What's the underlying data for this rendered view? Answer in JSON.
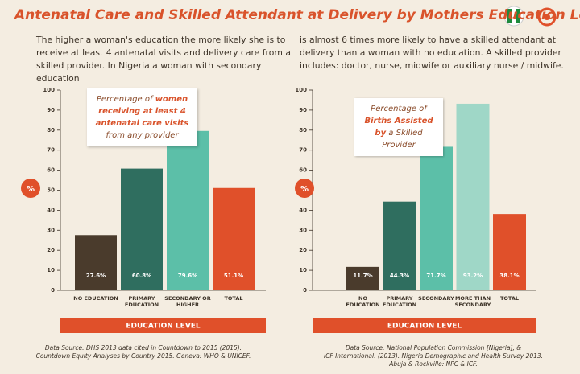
{
  "header": {
    "title": "Antenatal Care and Skilled Attendant at Delivery by Mothers Education Level",
    "intro": [
      "The higher a woman's education the more likely she is to receive at least 4 antenatal visits and delivery care from a skilled provider. In Nigeria a woman with secondary education",
      "is almost 6 times more likely to have a skilled attendant at delivery than a woman with no education. A skilled provider includes: doctor, nurse, midwife or auxiliary nurse / midwife."
    ]
  },
  "chart_data": [
    {
      "type": "bar",
      "annotation": [
        "Percentage of ",
        "women receiving at least 4 antenatal care visits",
        " from any provider"
      ],
      "y_label": "%",
      "x_label": "EDUCATION LEVEL",
      "categories": [
        "NO EDUCATION",
        "PRIMARY EDUCATION",
        "SECONDARY OR HIGHER",
        "TOTAL"
      ],
      "values": [
        27.6,
        60.8,
        79.6,
        51.1
      ],
      "value_labels": [
        "27.6%",
        "60.8%",
        "79.6%",
        "51.1%"
      ],
      "colors": [
        "#4a3b2c",
        "#2f6e5f",
        "#5cbfa8",
        "#e0502a"
      ],
      "ylim": [
        0,
        100
      ],
      "yticks": [
        0,
        10,
        20,
        30,
        40,
        50,
        60,
        70,
        80,
        90,
        100
      ],
      "source": [
        "Data Source: DHS 2013 data cited in Countdown to 2015 (2015).",
        "Countdown Equity Analyses by Country 2015. Geneva: WHO & UNICEF."
      ]
    },
    {
      "type": "bar",
      "annotation": [
        "Percentage of ",
        "Births Assisted by",
        " a Skilled Provider"
      ],
      "y_label": "%",
      "x_label": "EDUCATION LEVEL",
      "categories": [
        "NO EDUCATION",
        "PRIMARY EDUCATION",
        "SECONDARY",
        "MORE THAN SECONDARY",
        "TOTAL"
      ],
      "values": [
        11.7,
        44.3,
        71.7,
        93.2,
        38.1
      ],
      "value_labels": [
        "11.7%",
        "44.3%",
        "71.7%",
        "93.2%",
        "38.1%"
      ],
      "colors": [
        "#4a3b2c",
        "#2f6e5f",
        "#5cbfa8",
        "#9fd7c7",
        "#e0502a"
      ],
      "ylim": [
        0,
        100
      ],
      "yticks": [
        0,
        10,
        20,
        30,
        40,
        50,
        60,
        70,
        80,
        90,
        100
      ],
      "source": [
        "Data Source: National Population Commission [Nigeria], &",
        "ICF International. (2013). Nigeria Demographic and Health Survey 2013.",
        "Abuja & Rockville: NPC & ICF."
      ]
    }
  ]
}
